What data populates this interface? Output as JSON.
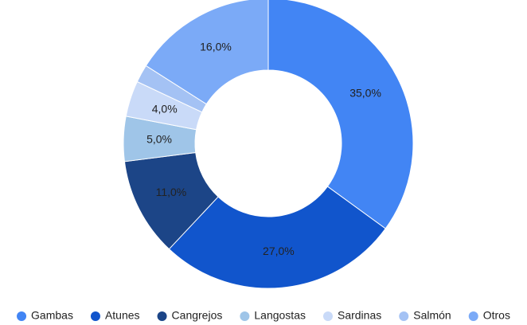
{
  "chart_data": {
    "type": "donut",
    "categories": [
      "Gambas",
      "Atunes",
      "Cangrejos",
      "Langostas",
      "Sardinas",
      "Salmón",
      "Otros"
    ],
    "values": [
      35,
      27,
      11,
      5,
      4,
      2,
      16
    ],
    "value_labels": [
      "35,0%",
      "27,0%",
      "11,0%",
      "5,0%",
      "4,0%",
      null,
      "16,0%"
    ],
    "colors": [
      "#4285f4",
      "#1155cc",
      "#1c4587",
      "#9fc5e8",
      "#c9daf8",
      "#a4c2f4",
      "#7baaf7"
    ],
    "legend": "bottom"
  }
}
